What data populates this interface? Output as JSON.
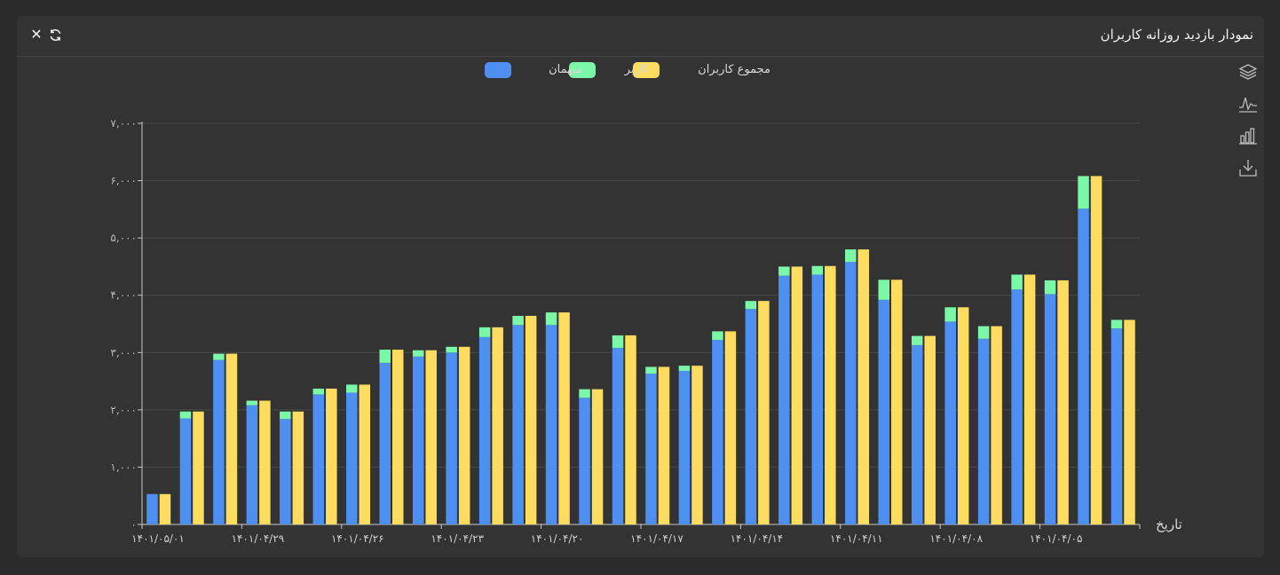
{
  "header": {
    "title": "نمودار بازدید روزانه کاربران",
    "close_glyph": "✕",
    "close_icon": "close-icon",
    "refresh_icon": "refresh-icon"
  },
  "toolbox": [
    {
      "name": "stack-toggle-button",
      "icon": "layers-icon"
    },
    {
      "name": "line-view-button",
      "icon": "line-chart-icon"
    },
    {
      "name": "bar-view-button",
      "icon": "bar-chart-icon"
    },
    {
      "name": "download-button",
      "icon": "download-icon"
    }
  ],
  "colors": {
    "guest": "#4e8ff2",
    "user": "#7bf7a8",
    "total": "#fddc5f",
    "axis": "#c8c8c8",
    "grid": "#4a4a4a"
  },
  "chart_data": {
    "type": "bar",
    "xlabel": "تاریخ",
    "ylabel": "",
    "ylim": [
      0,
      7000
    ],
    "yticks": [
      "۰",
      "۱,۰۰۰",
      "۲,۰۰۰",
      "۳,۰۰۰",
      "۴,۰۰۰",
      "۵,۰۰۰",
      "۶,۰۰۰",
      "۷,۰۰۰"
    ],
    "ytick_values": [
      0,
      1000,
      2000,
      3000,
      4000,
      5000,
      6000,
      7000
    ],
    "xtick_labels": [
      "۱۴۰۱/۰۵/۰۱",
      "۱۴۰۱/۰۴/۲۹",
      "۱۴۰۱/۰۴/۲۶",
      "۱۴۰۱/۰۴/۲۳",
      "۱۴۰۱/۰۴/۲۰",
      "۱۴۰۱/۰۴/۱۷",
      "۱۴۰۱/۰۴/۱۴",
      "۱۴۰۱/۰۴/۱۱",
      "۱۴۰۱/۰۴/۰۸",
      "۱۴۰۱/۰۴/۰۵"
    ],
    "grid": true,
    "legend_position": "top-center",
    "legend": [
      "میهمان",
      "کاربر",
      "مجموع کاربران"
    ],
    "series": [
      {
        "name": "میهمان",
        "stack": "visits",
        "values": [
          530,
          1850,
          2870,
          2080,
          1840,
          2270,
          2300,
          2820,
          2930,
          3000,
          3270,
          3480,
          3480,
          2210,
          3080,
          2630,
          2680,
          3220,
          3760,
          4340,
          4360,
          4580,
          3920,
          3130,
          3540,
          3240,
          4100,
          4020,
          5510,
          3420
        ]
      },
      {
        "name": "کاربر",
        "stack": "visits",
        "values": [
          0,
          120,
          110,
          80,
          130,
          100,
          140,
          230,
          110,
          100,
          170,
          160,
          220,
          150,
          220,
          120,
          90,
          150,
          140,
          160,
          150,
          220,
          350,
          160,
          250,
          220,
          260,
          240,
          570,
          150
        ]
      },
      {
        "name": "مجموع کاربران",
        "stack": "total",
        "values": [
          530,
          1970,
          2980,
          2160,
          1970,
          2370,
          2440,
          3050,
          3040,
          3100,
          3440,
          3640,
          3700,
          2360,
          3300,
          2750,
          2770,
          3370,
          3900,
          4500,
          4510,
          4800,
          4270,
          3290,
          3790,
          3460,
          4360,
          4260,
          6080,
          3570
        ]
      }
    ]
  }
}
